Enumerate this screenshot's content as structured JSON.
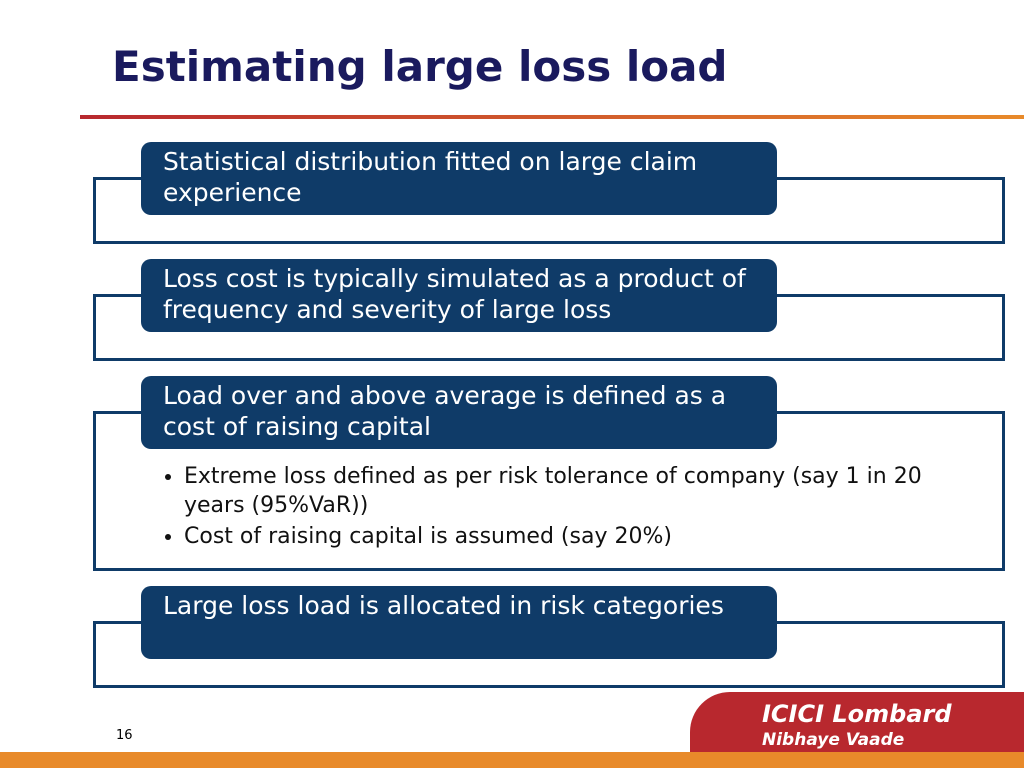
{
  "header": {
    "title": "Estimating large loss load"
  },
  "blocks": [
    {
      "heading": "Statistical distribution fitted on large claim experience",
      "bullets": []
    },
    {
      "heading": "Loss cost is typically simulated as a product of frequency and severity of large loss",
      "bullets": []
    },
    {
      "heading": "Load over and above average is defined as a cost of raising capital",
      "bullets": [
        "Extreme loss defined as per risk tolerance of company (say 1 in 20 years (95%VaR))",
        "Cost of raising capital is assumed (say 20%)"
      ]
    },
    {
      "heading": "Large loss load is allocated in risk categories",
      "bullets": []
    }
  ],
  "footer": {
    "page": "16",
    "logo": "ICICI Lombard",
    "tagline": "Nibhaye Vaade"
  }
}
